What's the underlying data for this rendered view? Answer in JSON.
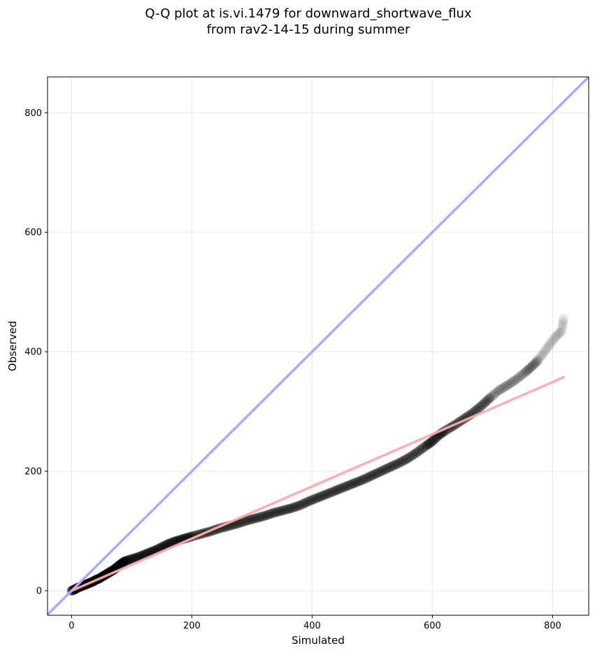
{
  "chart_data": {
    "type": "scatter",
    "title_line1": "Q-Q plot at is.vi.1479 for downward_shortwave_flux",
    "title_line2": "from rav2-14-15 during summer",
    "xlabel": "Simulated",
    "ylabel": "Observed",
    "xlim": [
      -40,
      860
    ],
    "ylim": [
      -41,
      860
    ],
    "grid": true,
    "xticks": [
      0,
      200,
      400,
      600,
      800
    ],
    "yticks": [
      0,
      200,
      400,
      600,
      800
    ],
    "identity_line": {
      "color": "#aaaaff",
      "from": [
        -40,
        -40
      ],
      "to": [
        860,
        860
      ]
    },
    "fit_line": {
      "color": "#ffaaaa",
      "from": [
        0,
        0
      ],
      "to": [
        820,
        358
      ]
    },
    "points_color": "#000000",
    "points": [
      [
        0,
        0
      ],
      [
        5,
        2
      ],
      [
        10,
        5
      ],
      [
        15,
        7
      ],
      [
        20,
        9
      ],
      [
        25,
        11
      ],
      [
        30,
        13
      ],
      [
        35,
        15
      ],
      [
        40,
        18
      ],
      [
        45,
        20
      ],
      [
        50,
        23
      ],
      [
        55,
        26
      ],
      [
        60,
        29
      ],
      [
        65,
        32
      ],
      [
        70,
        35
      ],
      [
        75,
        39
      ],
      [
        80,
        43
      ],
      [
        85,
        47
      ],
      [
        90,
        50
      ],
      [
        100,
        53
      ],
      [
        110,
        56
      ],
      [
        120,
        60
      ],
      [
        130,
        64
      ],
      [
        140,
        68
      ],
      [
        150,
        73
      ],
      [
        160,
        78
      ],
      [
        170,
        82
      ],
      [
        180,
        85
      ],
      [
        190,
        88
      ],
      [
        200,
        91
      ],
      [
        215,
        95
      ],
      [
        230,
        99
      ],
      [
        245,
        104
      ],
      [
        260,
        108
      ],
      [
        275,
        112
      ],
      [
        290,
        117
      ],
      [
        305,
        121
      ],
      [
        320,
        125
      ],
      [
        335,
        130
      ],
      [
        350,
        134
      ],
      [
        365,
        138
      ],
      [
        380,
        143
      ],
      [
        395,
        150
      ],
      [
        410,
        156
      ],
      [
        425,
        162
      ],
      [
        440,
        168
      ],
      [
        455,
        174
      ],
      [
        470,
        180
      ],
      [
        485,
        186
      ],
      [
        500,
        193
      ],
      [
        515,
        200
      ],
      [
        530,
        207
      ],
      [
        545,
        214
      ],
      [
        560,
        222
      ],
      [
        575,
        232
      ],
      [
        590,
        243
      ],
      [
        600,
        250
      ],
      [
        610,
        260
      ],
      [
        620,
        267
      ],
      [
        635,
        276
      ],
      [
        650,
        286
      ],
      [
        665,
        296
      ],
      [
        680,
        308
      ],
      [
        695,
        322
      ],
      [
        710,
        335
      ],
      [
        725,
        344
      ],
      [
        740,
        354
      ],
      [
        755,
        366
      ],
      [
        765,
        375
      ],
      [
        775,
        385
      ],
      [
        785,
        398
      ],
      [
        795,
        412
      ],
      [
        805,
        425
      ],
      [
        815,
        435
      ],
      [
        818,
        455
      ]
    ]
  }
}
